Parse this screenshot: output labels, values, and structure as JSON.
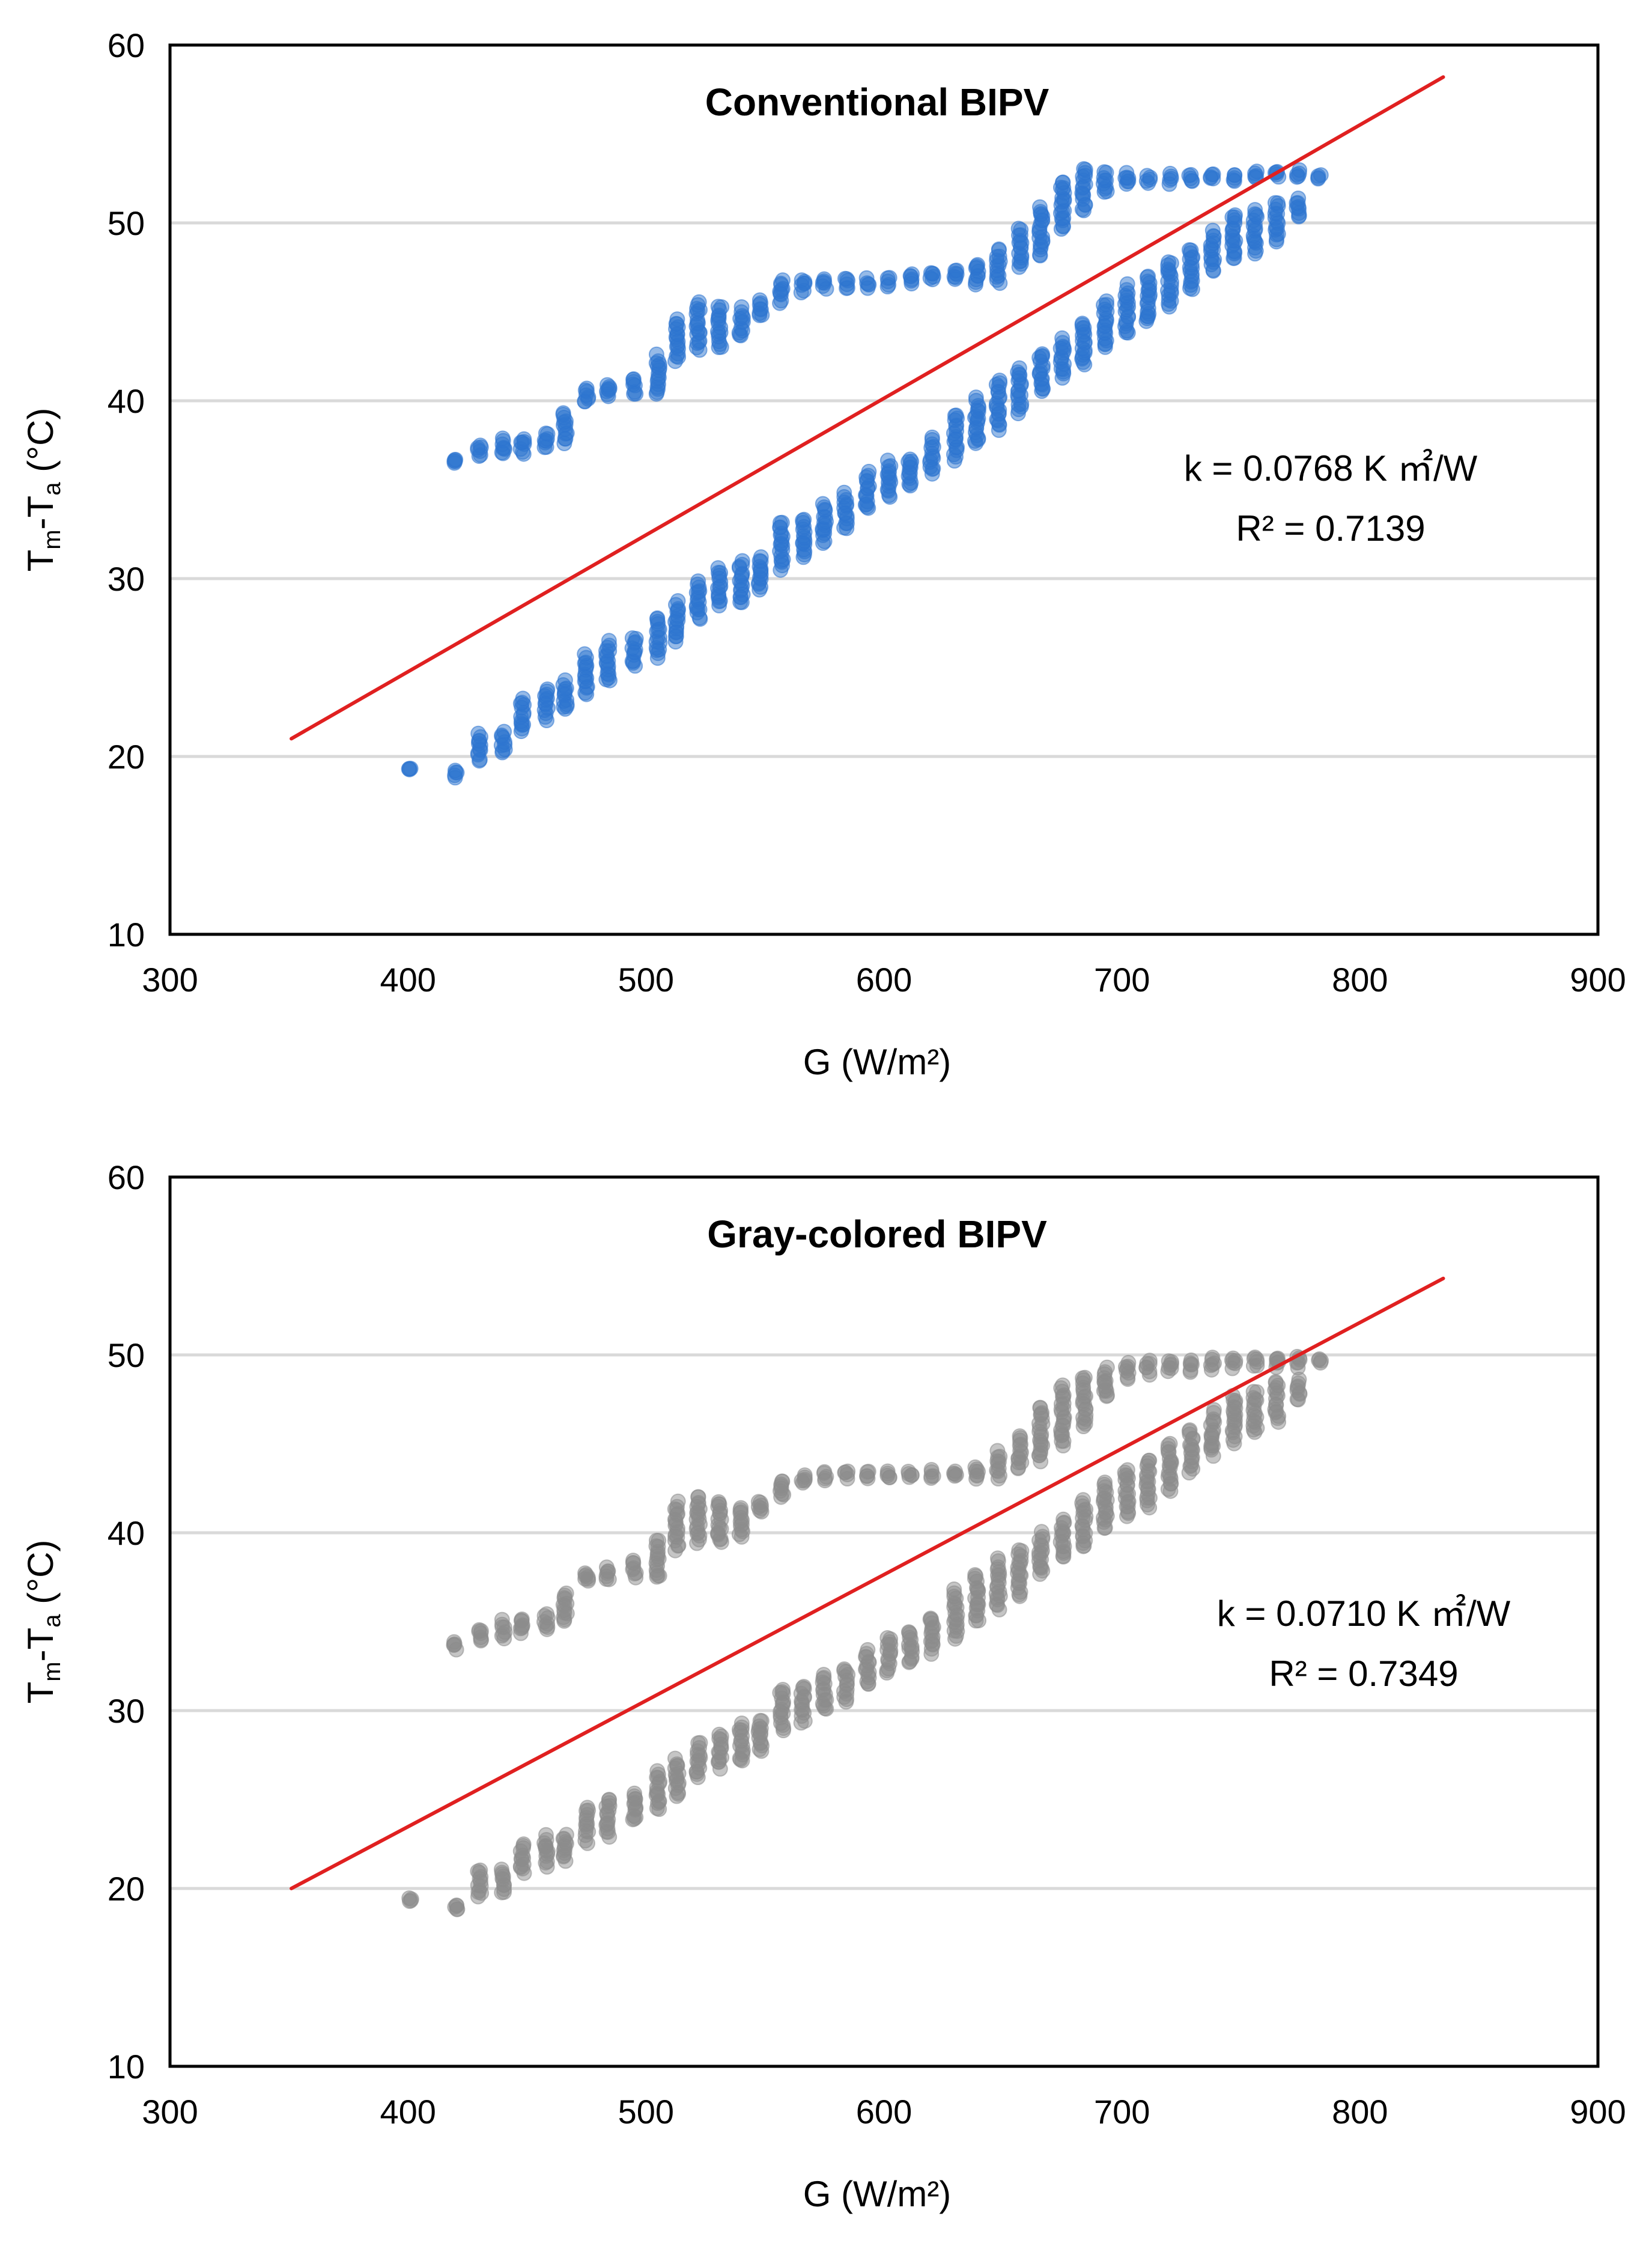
{
  "chart_data": [
    {
      "type": "scatter",
      "title": "Conventional BIPV",
      "xlabel": "G (W/m²)",
      "ylabel": "Tm-Ta (°C)",
      "ylabel_parts": {
        "t1": "T",
        "s1": "m",
        "dash": "-T",
        "s2": "a",
        "rest": " (°C)"
      },
      "xlim": [
        300,
        900
      ],
      "ylim": [
        10,
        60
      ],
      "x_ticks": [
        300,
        400,
        500,
        600,
        700,
        800,
        900
      ],
      "y_ticks": [
        10,
        20,
        30,
        40,
        50,
        60
      ],
      "gridlines": "horizontal",
      "point_color": "#2E75D0",
      "fit": {
        "x": [
          351,
          835
        ],
        "y": [
          21.0,
          58.2
        ],
        "color": "#E02020"
      },
      "annotations": {
        "k": "k = 0.0768 K ㎡/W",
        "r2": "R² = 0.7139"
      },
      "upper_band": {
        "x": [
          420,
          430,
          440,
          448,
          458,
          466,
          475,
          484,
          495,
          505,
          513,
          522,
          531,
          540,
          548,
          557,
          566,
          575,
          584,
          593,
          602,
          611,
          620,
          630,
          639,
          648,
          657,
          666,
          675,
          684,
          693,
          702,
          711,
          720,
          729,
          738,
          747,
          756,
          765,
          774,
          783
        ],
        "y": [
          36.6,
          37.2,
          37.4,
          37.5,
          37.8,
          38.5,
          40.3,
          40.6,
          40.8,
          41.4,
          43.4,
          44.2,
          44.1,
          44.4,
          45.2,
          46.2,
          46.5,
          46.6,
          46.6,
          46.6,
          46.7,
          46.9,
          47.0,
          47.1,
          47.2,
          47.6,
          48.6,
          49.5,
          51.0,
          51.9,
          52.3,
          52.4,
          52.4,
          52.5,
          52.6,
          52.6,
          52.6,
          52.7,
          52.8,
          52.7,
          52.6
        ],
        "spread": [
          0.3,
          0.6,
          0.9,
          0.8,
          0.8,
          1.6,
          0.8,
          0.8,
          0.9,
          2.2,
          2.3,
          2.6,
          2.4,
          1.5,
          0.8,
          1.2,
          0.6,
          0.5,
          0.5,
          0.4,
          0.4,
          0.5,
          0.5,
          0.6,
          1.1,
          1.8,
          2.2,
          2.8,
          2.8,
          2.4,
          1.2,
          0.6,
          0.4,
          0.4,
          0.4,
          0.4,
          0.4,
          0.4,
          0.4,
          0.4,
          0.2
        ]
      },
      "lower_band": {
        "x": [
          401,
          420,
          430,
          440,
          448,
          458,
          466,
          475,
          484,
          495,
          505,
          513,
          522,
          531,
          540,
          548,
          557,
          566,
          575,
          584,
          593,
          602,
          611,
          620,
          630,
          639,
          648,
          657,
          666,
          675,
          684,
          693,
          702,
          711,
          720,
          729,
          738,
          747,
          756,
          765,
          774
        ],
        "y": [
          19.3,
          19.0,
          20.5,
          20.8,
          22.3,
          23.0,
          23.4,
          24.6,
          25.3,
          25.9,
          26.7,
          27.6,
          28.8,
          29.5,
          29.8,
          30.3,
          31.9,
          32.3,
          33.1,
          33.8,
          34.9,
          35.6,
          36.0,
          36.9,
          38.0,
          38.8,
          39.8,
          40.6,
          41.6,
          42.4,
          43.2,
          44.3,
          45.1,
          45.7,
          46.6,
          47.4,
          48.4,
          49.2,
          49.5,
          50.1,
          50.8
        ],
        "spread": [
          0.2,
          0.3,
          1.5,
          1.2,
          1.8,
          1.7,
          1.6,
          2.1,
          2.3,
          1.7,
          2.2,
          2.1,
          2.1,
          2.0,
          2.4,
          1.8,
          2.6,
          2.1,
          2.1,
          2.0,
          2.1,
          2.0,
          1.6,
          1.9,
          2.5,
          2.6,
          2.7,
          2.5,
          2.3,
          2.1,
          2.5,
          2.6,
          2.7,
          2.6,
          2.6,
          2.4,
          2.2,
          2.6,
          2.4,
          2.2,
          1.0
        ]
      }
    },
    {
      "type": "scatter",
      "title": "Gray-colored BIPV",
      "xlabel": "G (W/m²)",
      "ylabel": "Tm-Ta (°C)",
      "ylabel_parts": {
        "t1": "T",
        "s1": "m",
        "dash": "-T",
        "s2": "a",
        "rest": " (°C)"
      },
      "xlim": [
        300,
        900
      ],
      "ylim": [
        10,
        60
      ],
      "x_ticks": [
        300,
        400,
        500,
        600,
        700,
        800,
        900
      ],
      "y_ticks": [
        10,
        20,
        30,
        40,
        50,
        60
      ],
      "gridlines": "horizontal",
      "point_color": "#8C8C8C",
      "fit": {
        "x": [
          351,
          835
        ],
        "y": [
          20.0,
          54.3
        ],
        "color": "#E02020"
      },
      "annotations": {
        "k": "k = 0.0710 K ㎡/W",
        "r2": "R² = 0.7349"
      },
      "upper_band": {
        "x": [
          420,
          430,
          440,
          448,
          458,
          466,
          475,
          484,
          495,
          505,
          513,
          522,
          531,
          540,
          548,
          557,
          566,
          575,
          584,
          593,
          602,
          611,
          620,
          630,
          639,
          648,
          657,
          666,
          675,
          684,
          693,
          702,
          711,
          720,
          729,
          738,
          747,
          756,
          765,
          774,
          783
        ],
        "y": [
          33.7,
          34.3,
          34.6,
          34.8,
          35.0,
          35.8,
          37.5,
          37.7,
          38.0,
          38.5,
          40.4,
          40.8,
          40.6,
          40.6,
          41.5,
          42.5,
          43.0,
          43.2,
          43.3,
          43.3,
          43.3,
          43.3,
          43.3,
          43.3,
          43.4,
          43.8,
          44.5,
          45.6,
          46.6,
          47.4,
          48.4,
          49.1,
          49.3,
          49.4,
          49.4,
          49.5,
          49.6,
          49.6,
          49.6,
          49.6,
          49.6
        ],
        "spread": [
          0.3,
          0.6,
          0.9,
          0.8,
          0.8,
          1.7,
          0.6,
          0.6,
          0.9,
          2.2,
          2.6,
          2.6,
          2.5,
          1.6,
          0.6,
          1.0,
          0.5,
          0.3,
          0.3,
          0.3,
          0.3,
          0.3,
          0.3,
          0.3,
          0.6,
          1.4,
          1.8,
          3.0,
          3.3,
          2.8,
          1.6,
          0.8,
          0.6,
          0.6,
          0.5,
          0.5,
          0.5,
          0.5,
          0.5,
          0.5,
          0.2
        ]
      },
      "lower_band": {
        "x": [
          401,
          420,
          430,
          440,
          448,
          458,
          466,
          475,
          484,
          495,
          505,
          513,
          522,
          531,
          540,
          548,
          557,
          566,
          575,
          584,
          593,
          602,
          611,
          620,
          630,
          639,
          648,
          657,
          666,
          675,
          684,
          693,
          702,
          711,
          720,
          729,
          738,
          747,
          756,
          765,
          774
        ],
        "y": [
          19.3,
          19.0,
          20.3,
          20.4,
          21.7,
          22.1,
          22.3,
          23.6,
          24.0,
          24.6,
          25.5,
          26.2,
          27.2,
          27.8,
          28.2,
          28.6,
          30.1,
          30.4,
          31.0,
          31.5,
          32.4,
          33.2,
          33.6,
          34.3,
          35.4,
          36.3,
          37.1,
          37.8,
          38.8,
          39.7,
          40.5,
          41.5,
          42.3,
          42.8,
          43.7,
          44.6,
          45.6,
          46.4,
          46.8,
          47.4,
          48.0
        ],
        "spread": [
          0.2,
          0.3,
          1.5,
          1.3,
          1.6,
          1.6,
          1.5,
          1.9,
          2.1,
          1.6,
          2.2,
          2.1,
          2.0,
          1.9,
          2.2,
          1.8,
          2.4,
          2.0,
          2.0,
          1.9,
          2.0,
          2.0,
          1.8,
          2.0,
          2.6,
          2.6,
          2.7,
          2.6,
          2.4,
          2.2,
          2.6,
          2.6,
          2.7,
          2.6,
          2.6,
          2.4,
          2.4,
          2.6,
          2.4,
          2.2,
          1.0
        ]
      }
    }
  ]
}
